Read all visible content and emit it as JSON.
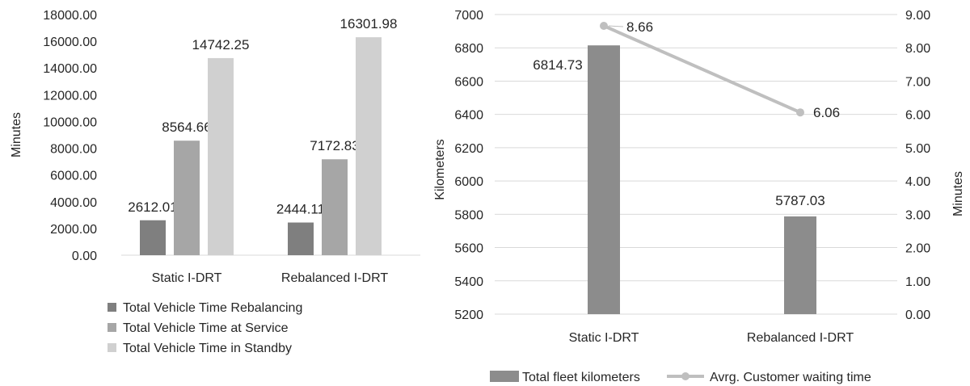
{
  "chart_data": [
    {
      "type": "bar",
      "ylabel": "Minutes",
      "ylim": [
        0,
        18000
      ],
      "yticks": [
        "0.00",
        "2000.00",
        "4000.00",
        "6000.00",
        "8000.00",
        "10000.00",
        "12000.00",
        "14000.00",
        "16000.00",
        "18000.00"
      ],
      "ytick_values": [
        0,
        2000,
        4000,
        6000,
        8000,
        10000,
        12000,
        14000,
        16000,
        18000
      ],
      "categories": [
        "Static I-DRT",
        "Rebalanced I-DRT"
      ],
      "series": [
        {
          "name": "Total Vehicle Time Rebalancing",
          "values": [
            2612.01,
            2444.11
          ],
          "labels": [
            "2612.01",
            "2444.11"
          ],
          "color": "#7f7f7f"
        },
        {
          "name": "Total Vehicle Time at Service",
          "values": [
            8564.66,
            7172.83
          ],
          "labels": [
            "8564.66",
            "7172.83"
          ],
          "color": "#a6a6a6"
        },
        {
          "name": "Total Vehicle Time in Standby",
          "values": [
            14742.25,
            16301.98
          ],
          "labels": [
            "14742.25",
            "16301.98"
          ],
          "color": "#d0d0d0"
        }
      ],
      "grid": false,
      "legend": "bottom"
    },
    {
      "type": "bar",
      "ylabel": "Kilometers",
      "y2label": "Minutes",
      "ylim": [
        5200,
        7000
      ],
      "y2lim": [
        0,
        9
      ],
      "yticks": [
        "5200",
        "5400",
        "5600",
        "5800",
        "6000",
        "6200",
        "6400",
        "6600",
        "6800",
        "7000"
      ],
      "ytick_values": [
        5200,
        5400,
        5600,
        5800,
        6000,
        6200,
        6400,
        6600,
        6800,
        7000
      ],
      "y2ticks": [
        "0.00",
        "1.00",
        "2.00",
        "3.00",
        "4.00",
        "5.00",
        "6.00",
        "7.00",
        "8.00",
        "9.00"
      ],
      "y2tick_values": [
        0,
        1,
        2,
        3,
        4,
        5,
        6,
        7,
        8,
        9
      ],
      "categories": [
        "Static I-DRT",
        "Rebalanced I-DRT"
      ],
      "series": [
        {
          "name": "Total fleet kilometers",
          "kind": "bar",
          "axis": "left",
          "values": [
            6814.73,
            5787.03
          ],
          "labels": [
            "6814.73",
            "5787.03"
          ],
          "color": "#8c8c8c"
        },
        {
          "name": "Avrg. Customer waiting time",
          "kind": "line",
          "axis": "right",
          "values": [
            8.66,
            6.06
          ],
          "labels": [
            "8.66",
            "6.06"
          ],
          "color": "#bfbfbf"
        }
      ],
      "grid": true,
      "legend": "bottom"
    }
  ]
}
